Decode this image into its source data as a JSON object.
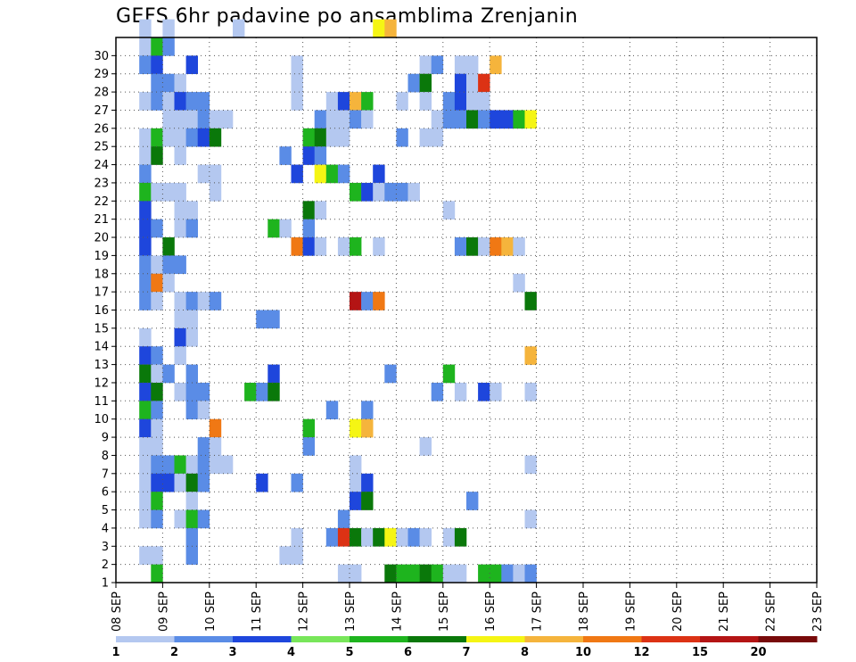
{
  "chart_data": {
    "type": "heatmap",
    "title": "GEFS 6hr padavine po ansamblima Zrenjanin",
    "x_tick_labels": [
      "08 SEP",
      "09 SEP",
      "10 SEP",
      "11 SEP",
      "12 SEP",
      "13 SEP",
      "14 SEP",
      "15 SEP",
      "16 SEP",
      "17 SEP",
      "18 SEP",
      "19 SEP",
      "20 SEP",
      "21 SEP",
      "22 SEP",
      "23 SEP"
    ],
    "y_tick_labels": [
      "1",
      "2",
      "3",
      "4",
      "5",
      "6",
      "7",
      "8",
      "9",
      "10",
      "11",
      "12",
      "13",
      "14",
      "15",
      "16",
      "17",
      "18",
      "19",
      "20",
      "21",
      "22",
      "23",
      "24",
      "25",
      "26",
      "27",
      "28",
      "29",
      "30"
    ],
    "x_unit": "6-hour step",
    "time_steps_total": 60,
    "members": 30,
    "grid": "dotted",
    "colorbar": {
      "levels": [
        1,
        2,
        3,
        4,
        5,
        6,
        7,
        8,
        10,
        12,
        15,
        20
      ],
      "colors": [
        "#b4c8f0",
        "#5a8ce6",
        "#1e46dc",
        "#78e65a",
        "#1eb41e",
        "#0a780a",
        "#f5f514",
        "#f5b43c",
        "#f07814",
        "#dc3214",
        "#b41414",
        "#780a0a"
      ]
    },
    "cells": [
      {
        "member": 30,
        "steps": [
          [
            2,
            1
          ],
          [
            4,
            1
          ],
          [
            10,
            1
          ],
          [
            22,
            7
          ],
          [
            23,
            9
          ]
        ]
      },
      {
        "member": 29,
        "steps": [
          [
            2,
            1
          ],
          [
            3,
            5
          ],
          [
            4,
            2
          ]
        ]
      },
      {
        "member": 28,
        "steps": [
          [
            2,
            2
          ],
          [
            3,
            3
          ],
          [
            6,
            3
          ],
          [
            15,
            1
          ],
          [
            26,
            1
          ],
          [
            27,
            2
          ],
          [
            29,
            1
          ],
          [
            30,
            1
          ],
          [
            32,
            8
          ]
        ]
      },
      {
        "member": 27,
        "steps": [
          [
            3,
            2
          ],
          [
            4,
            2
          ],
          [
            5,
            1
          ],
          [
            15,
            1
          ],
          [
            25,
            2
          ],
          [
            26,
            6
          ],
          [
            29,
            3
          ],
          [
            30,
            1
          ],
          [
            31,
            12
          ]
        ]
      },
      {
        "member": 26,
        "steps": [
          [
            2,
            1
          ],
          [
            3,
            2
          ],
          [
            4,
            1
          ],
          [
            5,
            3
          ],
          [
            6,
            2
          ],
          [
            7,
            2
          ],
          [
            15,
            1
          ],
          [
            18,
            1
          ],
          [
            19,
            3
          ],
          [
            20,
            9
          ],
          [
            21,
            5
          ],
          [
            24,
            1
          ],
          [
            26,
            1
          ],
          [
            28,
            2
          ],
          [
            29,
            3
          ],
          [
            30,
            1
          ],
          [
            31,
            1
          ]
        ]
      },
      {
        "member": 25,
        "steps": [
          [
            4,
            1
          ],
          [
            5,
            1
          ],
          [
            6,
            1
          ],
          [
            7,
            2
          ],
          [
            8,
            1
          ],
          [
            9,
            1
          ],
          [
            17,
            2
          ],
          [
            18,
            1
          ],
          [
            19,
            1
          ],
          [
            20,
            2
          ],
          [
            21,
            1
          ],
          [
            27,
            1
          ],
          [
            28,
            2
          ],
          [
            29,
            2
          ],
          [
            30,
            6
          ],
          [
            31,
            2
          ],
          [
            32,
            3
          ],
          [
            33,
            3
          ],
          [
            34,
            5
          ],
          [
            35,
            7
          ]
        ]
      },
      {
        "member": 24,
        "steps": [
          [
            2,
            1
          ],
          [
            3,
            5
          ],
          [
            4,
            1
          ],
          [
            5,
            1
          ],
          [
            6,
            2
          ],
          [
            7,
            3
          ],
          [
            8,
            6
          ],
          [
            16,
            5
          ],
          [
            17,
            6
          ],
          [
            18,
            1
          ],
          [
            19,
            1
          ],
          [
            24,
            2
          ],
          [
            26,
            1
          ],
          [
            27,
            1
          ]
        ]
      },
      {
        "member": 23,
        "steps": [
          [
            2,
            1
          ],
          [
            3,
            6
          ],
          [
            5,
            1
          ],
          [
            14,
            2
          ],
          [
            16,
            3
          ],
          [
            17,
            2
          ]
        ]
      },
      {
        "member": 22,
        "steps": [
          [
            2,
            2
          ],
          [
            7,
            1
          ],
          [
            8,
            1
          ],
          [
            15,
            3
          ],
          [
            17,
            7
          ],
          [
            18,
            5
          ],
          [
            19,
            2
          ],
          [
            22,
            3
          ]
        ]
      },
      {
        "member": 21,
        "steps": [
          [
            2,
            5
          ],
          [
            3,
            1
          ],
          [
            4,
            1
          ],
          [
            5,
            1
          ],
          [
            8,
            1
          ],
          [
            20,
            5
          ],
          [
            21,
            3
          ],
          [
            22,
            1
          ],
          [
            23,
            2
          ],
          [
            24,
            2
          ],
          [
            25,
            1
          ]
        ]
      },
      {
        "member": 20,
        "steps": [
          [
            2,
            3
          ],
          [
            5,
            1
          ],
          [
            6,
            1
          ],
          [
            16,
            6
          ],
          [
            17,
            1
          ],
          [
            28,
            1
          ]
        ]
      },
      {
        "member": 19,
        "steps": [
          [
            2,
            3
          ],
          [
            3,
            2
          ],
          [
            5,
            1
          ],
          [
            6,
            2
          ],
          [
            13,
            5
          ],
          [
            14,
            1
          ],
          [
            16,
            2
          ]
        ]
      },
      {
        "member": 18,
        "steps": [
          [
            2,
            3
          ],
          [
            4,
            6
          ],
          [
            15,
            10
          ],
          [
            16,
            3
          ],
          [
            17,
            1
          ],
          [
            19,
            1
          ],
          [
            20,
            5
          ],
          [
            22,
            1
          ],
          [
            29,
            2
          ],
          [
            30,
            6
          ],
          [
            31,
            1
          ],
          [
            32,
            11
          ],
          [
            33,
            8
          ],
          [
            34,
            1
          ]
        ]
      },
      {
        "member": 17,
        "steps": [
          [
            2,
            2
          ],
          [
            3,
            1
          ],
          [
            4,
            2
          ],
          [
            5,
            2
          ]
        ]
      },
      {
        "member": 16,
        "steps": [
          [
            2,
            2
          ],
          [
            3,
            10
          ],
          [
            4,
            1
          ],
          [
            34,
            1
          ]
        ]
      },
      {
        "member": 15,
        "steps": [
          [
            2,
            2
          ],
          [
            3,
            1
          ],
          [
            5,
            1
          ],
          [
            6,
            2
          ],
          [
            7,
            1
          ],
          [
            8,
            2
          ],
          [
            20,
            15
          ],
          [
            21,
            2
          ],
          [
            22,
            10
          ],
          [
            35,
            6
          ]
        ]
      },
      {
        "member": 14,
        "steps": [
          [
            5,
            1
          ],
          [
            6,
            1
          ],
          [
            12,
            2
          ],
          [
            13,
            2
          ]
        ]
      },
      {
        "member": 13,
        "steps": [
          [
            2,
            1
          ],
          [
            5,
            3
          ],
          [
            6,
            1
          ]
        ]
      },
      {
        "member": 12,
        "steps": [
          [
            2,
            3
          ],
          [
            3,
            2
          ],
          [
            5,
            1
          ],
          [
            35,
            8
          ]
        ]
      },
      {
        "member": 11,
        "steps": [
          [
            2,
            6
          ],
          [
            3,
            1
          ],
          [
            4,
            2
          ],
          [
            6,
            2
          ],
          [
            13,
            3
          ],
          [
            23,
            2
          ],
          [
            28,
            5
          ]
        ]
      },
      {
        "member": 10,
        "steps": [
          [
            2,
            3
          ],
          [
            3,
            6
          ],
          [
            5,
            1
          ],
          [
            6,
            2
          ],
          [
            7,
            2
          ],
          [
            11,
            5
          ],
          [
            12,
            2
          ],
          [
            13,
            6
          ],
          [
            27,
            2
          ],
          [
            29,
            1
          ],
          [
            31,
            3
          ],
          [
            32,
            1
          ],
          [
            35,
            1
          ]
        ]
      },
      {
        "member": 9,
        "steps": [
          [
            2,
            5
          ],
          [
            3,
            2
          ],
          [
            6,
            2
          ],
          [
            7,
            1
          ],
          [
            18,
            2
          ],
          [
            21,
            2
          ]
        ]
      },
      {
        "member": 8,
        "steps": [
          [
            2,
            3
          ],
          [
            3,
            1
          ],
          [
            8,
            10
          ],
          [
            16,
            5
          ],
          [
            20,
            7
          ],
          [
            21,
            9
          ]
        ]
      },
      {
        "member": 7,
        "steps": [
          [
            2,
            1
          ],
          [
            3,
            1
          ],
          [
            7,
            2
          ],
          [
            8,
            1
          ],
          [
            16,
            2
          ],
          [
            26,
            1
          ]
        ]
      },
      {
        "member": 6,
        "steps": [
          [
            2,
            1
          ],
          [
            3,
            2
          ],
          [
            4,
            2
          ],
          [
            5,
            5
          ],
          [
            6,
            1
          ],
          [
            7,
            2
          ],
          [
            8,
            1
          ],
          [
            9,
            1
          ],
          [
            20,
            1
          ],
          [
            35,
            1
          ]
        ]
      },
      {
        "member": 5,
        "steps": [
          [
            2,
            1
          ],
          [
            3,
            3
          ],
          [
            4,
            3
          ],
          [
            5,
            1
          ],
          [
            6,
            6
          ],
          [
            7,
            2
          ],
          [
            12,
            3
          ],
          [
            15,
            2
          ],
          [
            20,
            1
          ],
          [
            21,
            3
          ]
        ]
      },
      {
        "member": 4,
        "steps": [
          [
            2,
            1
          ],
          [
            3,
            5
          ],
          [
            6,
            1
          ],
          [
            20,
            3
          ],
          [
            21,
            6
          ],
          [
            30,
            2
          ]
        ]
      },
      {
        "member": 3,
        "steps": [
          [
            2,
            1
          ],
          [
            3,
            2
          ],
          [
            5,
            1
          ],
          [
            6,
            5
          ],
          [
            7,
            2
          ],
          [
            19,
            2
          ],
          [
            35,
            1
          ]
        ]
      },
      {
        "member": 2,
        "steps": [
          [
            6,
            2
          ],
          [
            15,
            1
          ],
          [
            18,
            2
          ],
          [
            19,
            14
          ],
          [
            20,
            6
          ],
          [
            21,
            1
          ],
          [
            22,
            6
          ],
          [
            23,
            7
          ],
          [
            24,
            1
          ],
          [
            25,
            2
          ],
          [
            26,
            1
          ],
          [
            28,
            1
          ],
          [
            29,
            6
          ]
        ]
      },
      {
        "member": 1,
        "steps": [
          [
            2,
            1
          ],
          [
            3,
            1
          ],
          [
            6,
            2
          ],
          [
            14,
            1
          ],
          [
            15,
            1
          ]
        ]
      },
      {
        "member": 0,
        "steps": [
          [
            3,
            5
          ],
          [
            19,
            1
          ],
          [
            20,
            1
          ],
          [
            23,
            6
          ],
          [
            24,
            5
          ],
          [
            25,
            5
          ],
          [
            26,
            6
          ],
          [
            27,
            5
          ],
          [
            28,
            1
          ],
          [
            29,
            1
          ],
          [
            31,
            5
          ],
          [
            32,
            5
          ],
          [
            33,
            2
          ],
          [
            34,
            1
          ],
          [
            35,
            2
          ]
        ]
      }
    ]
  }
}
